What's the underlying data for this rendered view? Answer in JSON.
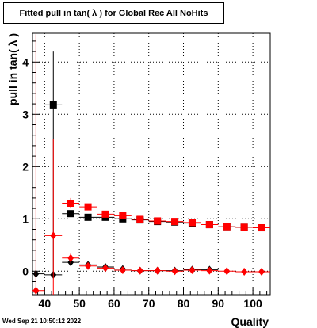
{
  "title": "Fitted pull in tan( λ ) for Global Rec All NoHits",
  "timestamp": "Wed Sep 21 10:50:12 2022",
  "chart_data": {
    "type": "scatter",
    "title": "Fitted pull in tan( λ ) for Global Rec All NoHits",
    "xlabel": "Quality",
    "ylabel": "pull in tan( λ )",
    "xlim": [
      36.5,
      105
    ],
    "ylim": [
      -0.45,
      4.55
    ],
    "x_ticks": [
      40,
      50,
      60,
      70,
      80,
      90,
      100
    ],
    "y_ticks": [
      0,
      1,
      2,
      3,
      4
    ],
    "grid": true,
    "series": [
      {
        "marker": "square",
        "color": "#000000",
        "points": [
          {
            "x": 42.5,
            "y": 3.18,
            "yerr_lo": 3.25,
            "yerr_hi": 1.02
          },
          {
            "x": 47.5,
            "y": 1.1,
            "yerr_lo": 0.05,
            "yerr_hi": 0.05
          },
          {
            "x": 52.5,
            "y": 1.03,
            "yerr_lo": 0.03,
            "yerr_hi": 0.03
          },
          {
            "x": 57.5,
            "y": 1.03,
            "yerr_lo": 0.02,
            "yerr_hi": 0.02
          },
          {
            "x": 62.5,
            "y": 1.0,
            "yerr_lo": 0.02,
            "yerr_hi": 0.02
          },
          {
            "x": 67.5,
            "y": 0.98,
            "yerr_lo": 0.02,
            "yerr_hi": 0.02
          },
          {
            "x": 72.5,
            "y": 0.95,
            "yerr_lo": 0.02,
            "yerr_hi": 0.02
          },
          {
            "x": 77.5,
            "y": 0.94,
            "yerr_lo": 0.02,
            "yerr_hi": 0.02
          },
          {
            "x": 82.5,
            "y": 0.92,
            "yerr_lo": 0.02,
            "yerr_hi": 0.02
          },
          {
            "x": 87.5,
            "y": 0.89,
            "yerr_lo": 0.02,
            "yerr_hi": 0.02
          },
          {
            "x": 92.5,
            "y": 0.85,
            "yerr_lo": 0.02,
            "yerr_hi": 0.02
          },
          {
            "x": 97.5,
            "y": 0.84,
            "yerr_lo": 0.02,
            "yerr_hi": 0.02
          },
          {
            "x": 102.5,
            "y": 0.83,
            "yerr_lo": 0.02,
            "yerr_hi": 0.02
          }
        ]
      },
      {
        "marker": "square",
        "color": "#ff0000",
        "points": [
          {
            "x": 47.5,
            "y": 1.3,
            "yerr_lo": 0.1,
            "yerr_hi": 0.1
          },
          {
            "x": 52.5,
            "y": 1.23,
            "yerr_lo": 0.04,
            "yerr_hi": 0.04
          },
          {
            "x": 57.5,
            "y": 1.09,
            "yerr_lo": 0.03,
            "yerr_hi": 0.03
          },
          {
            "x": 62.5,
            "y": 1.06,
            "yerr_lo": 0.02,
            "yerr_hi": 0.02
          },
          {
            "x": 67.5,
            "y": 0.99,
            "yerr_lo": 0.02,
            "yerr_hi": 0.02
          },
          {
            "x": 72.5,
            "y": 0.96,
            "yerr_lo": 0.02,
            "yerr_hi": 0.02
          },
          {
            "x": 77.5,
            "y": 0.95,
            "yerr_lo": 0.02,
            "yerr_hi": 0.02
          },
          {
            "x": 82.5,
            "y": 0.93,
            "yerr_lo": 0.02,
            "yerr_hi": 0.02
          },
          {
            "x": 87.5,
            "y": 0.89,
            "yerr_lo": 0.02,
            "yerr_hi": 0.02
          },
          {
            "x": 92.5,
            "y": 0.85,
            "yerr_lo": 0.02,
            "yerr_hi": 0.02
          },
          {
            "x": 97.5,
            "y": 0.84,
            "yerr_lo": 0.02,
            "yerr_hi": 0.02
          },
          {
            "x": 102.5,
            "y": 0.83,
            "yerr_lo": 0.02,
            "yerr_hi": 0.02
          }
        ]
      },
      {
        "marker": "diamond",
        "color": "#000000",
        "points": [
          {
            "x": 37.5,
            "y": -0.05,
            "yerr_lo": 0.02,
            "yerr_hi": 0.02
          },
          {
            "x": 42.5,
            "y": -0.07,
            "yerr_lo": 0.02,
            "yerr_hi": 0.02
          },
          {
            "x": 47.5,
            "y": 0.17,
            "yerr_lo": 0.05,
            "yerr_hi": 0.05
          },
          {
            "x": 52.5,
            "y": 0.12,
            "yerr_lo": 0.03,
            "yerr_hi": 0.03
          },
          {
            "x": 57.5,
            "y": 0.08,
            "yerr_lo": 0.02,
            "yerr_hi": 0.02
          },
          {
            "x": 62.5,
            "y": 0.04,
            "yerr_lo": 0.02,
            "yerr_hi": 0.02
          },
          {
            "x": 67.5,
            "y": 0.01,
            "yerr_lo": 0.02,
            "yerr_hi": 0.02
          },
          {
            "x": 72.5,
            "y": 0.01,
            "yerr_lo": 0.02,
            "yerr_hi": 0.02
          },
          {
            "x": 77.5,
            "y": 0.01,
            "yerr_lo": 0.02,
            "yerr_hi": 0.02
          },
          {
            "x": 82.5,
            "y": 0.03,
            "yerr_lo": 0.02,
            "yerr_hi": 0.02
          },
          {
            "x": 87.5,
            "y": 0.03,
            "yerr_lo": 0.02,
            "yerr_hi": 0.02
          }
        ]
      },
      {
        "marker": "diamond",
        "color": "#ff0000",
        "points": [
          {
            "x": 37.5,
            "y": -0.37,
            "yerr_lo": 0.08,
            "yerr_hi": 4.9
          },
          {
            "x": 42.5,
            "y": 0.68,
            "yerr_lo": 1.15,
            "yerr_hi": 1.85
          },
          {
            "x": 47.5,
            "y": 0.25,
            "yerr_lo": 0.1,
            "yerr_hi": 0.1
          },
          {
            "x": 52.5,
            "y": 0.1,
            "yerr_lo": 0.04,
            "yerr_hi": 0.04
          },
          {
            "x": 57.5,
            "y": 0.06,
            "yerr_lo": 0.03,
            "yerr_hi": 0.03
          },
          {
            "x": 62.5,
            "y": 0.02,
            "yerr_lo": 0.02,
            "yerr_hi": 0.02
          },
          {
            "x": 67.5,
            "y": 0.01,
            "yerr_lo": 0.02,
            "yerr_hi": 0.02
          },
          {
            "x": 72.5,
            "y": 0.01,
            "yerr_lo": 0.02,
            "yerr_hi": 0.02
          },
          {
            "x": 77.5,
            "y": 0.0,
            "yerr_lo": 0.02,
            "yerr_hi": 0.02
          },
          {
            "x": 82.5,
            "y": 0.02,
            "yerr_lo": 0.02,
            "yerr_hi": 0.02
          },
          {
            "x": 87.5,
            "y": 0.01,
            "yerr_lo": 0.02,
            "yerr_hi": 0.02
          },
          {
            "x": 92.5,
            "y": 0.0,
            "yerr_lo": 0.02,
            "yerr_hi": 0.02
          },
          {
            "x": 97.5,
            "y": -0.01,
            "yerr_lo": 0.02,
            "yerr_hi": 0.02
          },
          {
            "x": 102.5,
            "y": -0.01,
            "yerr_lo": 0.02,
            "yerr_hi": 0.02
          }
        ]
      }
    ]
  }
}
